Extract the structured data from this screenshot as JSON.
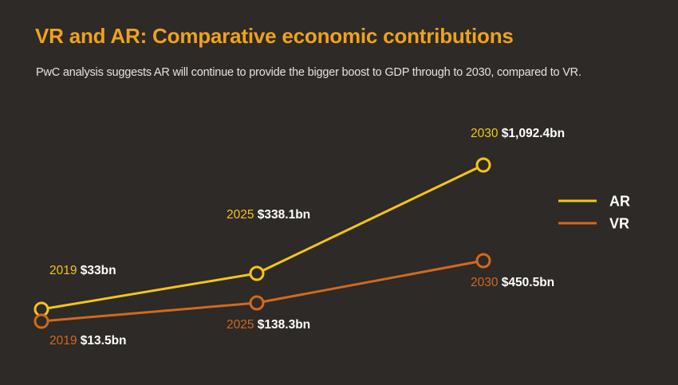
{
  "header": {
    "title": "VR and AR: Comparative economic contributions",
    "subtitle": "PwC analysis suggests AR will continue to provide the bigger boost to GDP through to 2030, compared to VR."
  },
  "colors": {
    "background": "#2d2a27",
    "title": "#f0a21c",
    "AR": "#f5c518",
    "VR": "#d2691e"
  },
  "chart_data": {
    "type": "line",
    "title": "VR and AR: Comparative economic contributions",
    "subtitle": "PwC analysis suggests AR will continue to provide the bigger boost to GDP through to 2030, compared to VR.",
    "x": [
      "2019",
      "2025",
      "2030"
    ],
    "series": [
      {
        "name": "AR",
        "values": [
          33,
          338.1,
          1092.4
        ],
        "labels": [
          "$33bn",
          "$338.1bn",
          "$1,092.4bn"
        ],
        "color": "#f5c518"
      },
      {
        "name": "VR",
        "values": [
          13.5,
          138.3,
          450.5
        ],
        "labels": [
          "$13.5bn",
          "$138.3bn",
          "$450.5bn"
        ],
        "color": "#d2691e"
      }
    ],
    "xlabel": "",
    "ylabel": "",
    "ylim": [
      0,
      1100
    ],
    "grid": false,
    "legend": "right"
  }
}
